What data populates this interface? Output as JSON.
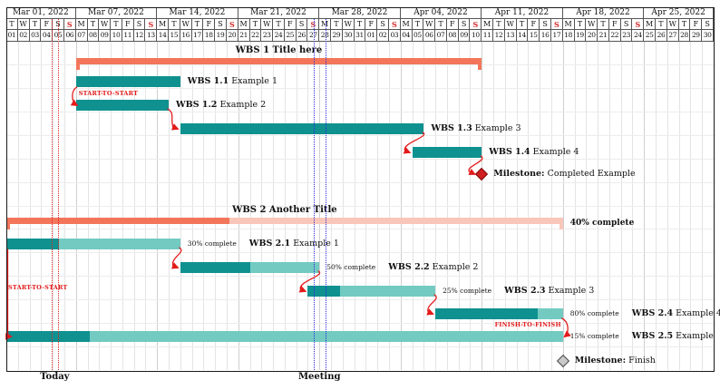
{
  "chart_data": {
    "type": "gantt",
    "calendar": {
      "weeks": [
        {
          "label": "Mar 01, 2022",
          "days": 6
        },
        {
          "label": "Mar 07, 2022",
          "days": 7
        },
        {
          "label": "Mar 14, 2022",
          "days": 7
        },
        {
          "label": "Mar 21, 2022",
          "days": 7
        },
        {
          "label": "Mar 28, 2022",
          "days": 7
        },
        {
          "label": "Apr 04, 2022",
          "days": 7
        },
        {
          "label": "Apr 11, 2022",
          "days": 7
        },
        {
          "label": "Apr 18, 2022",
          "days": 7
        },
        {
          "label": "Apr 25, 2022",
          "days": 6
        }
      ],
      "day_letters": [
        "T",
        "W",
        "T",
        "F",
        "S",
        "S",
        "M",
        "T",
        "W",
        "T",
        "F",
        "S",
        "S",
        "M",
        "T",
        "W",
        "T",
        "F",
        "S",
        "S",
        "M",
        "T",
        "W",
        "T",
        "F",
        "S",
        "S",
        "M",
        "T",
        "W",
        "T",
        "F",
        "S",
        "S",
        "M",
        "T",
        "W",
        "T",
        "F",
        "S",
        "S",
        "M",
        "T",
        "W",
        "T",
        "F",
        "S",
        "S",
        "M",
        "T",
        "W",
        "T",
        "F",
        "S",
        "S",
        "M",
        "T",
        "W",
        "T",
        "F",
        "S"
      ],
      "day_numbers": [
        "01",
        "02",
        "03",
        "04",
        "05",
        "06",
        "07",
        "08",
        "09",
        "10",
        "11",
        "12",
        "13",
        "14",
        "15",
        "16",
        "17",
        "18",
        "19",
        "20",
        "21",
        "22",
        "23",
        "24",
        "25",
        "26",
        "27",
        "28",
        "29",
        "30",
        "31",
        "01",
        "02",
        "03",
        "04",
        "05",
        "06",
        "07",
        "08",
        "09",
        "10",
        "11",
        "12",
        "13",
        "14",
        "15",
        "16",
        "17",
        "18",
        "19",
        "20",
        "21",
        "22",
        "23",
        "24",
        "25",
        "26",
        "27",
        "28",
        "29",
        "30"
      ],
      "sunday_indices": [
        5,
        12,
        19,
        26,
        33,
        40,
        47,
        54
      ]
    },
    "colors": {
      "group_dark": "#F3765B",
      "group_light": "#F9C7B9",
      "task_dark": "#0F9190",
      "task_light": "#73CAC1",
      "milestone_red": "#D01F1F",
      "milestone_gray": "#C9C9C9",
      "link": "#E31B1B",
      "today_line": "#E52222",
      "meeting_line": "#2B2BE0"
    },
    "tasks": [
      {
        "id": "group1",
        "kind": "group",
        "label_bold": "WBS 1 Title here",
        "label_rest": "",
        "start": 6,
        "end": 41,
        "row": 0
      },
      {
        "id": "t11",
        "kind": "bar",
        "label_bold": "WBS 1.1",
        "label_rest": " Example 1",
        "start": 6,
        "end": 15,
        "row": 1
      },
      {
        "id": "t12",
        "kind": "bar",
        "label_bold": "WBS 1.2",
        "label_rest": " Example 2",
        "start": 6,
        "end": 14,
        "row": 2
      },
      {
        "id": "t13",
        "kind": "bar",
        "label_bold": "WBS 1.3",
        "label_rest": " Example 3",
        "start": 15,
        "end": 36,
        "row": 3
      },
      {
        "id": "t14",
        "kind": "bar",
        "label_bold": "WBS 1.4",
        "label_rest": " Example 4",
        "start": 35,
        "end": 41,
        "row": 4
      },
      {
        "id": "m1",
        "kind": "milestone",
        "label_bold": "Milestone:",
        "label_rest": " Completed Example",
        "day": 41,
        "row": 5,
        "color": "red"
      },
      {
        "id": "group2",
        "kind": "group",
        "label_bold": "WBS 2 Another Title",
        "label_rest": "",
        "start": 0,
        "end": 48,
        "row": 6,
        "progress": 0.4,
        "progress_label": "40% complete"
      },
      {
        "id": "t21",
        "kind": "bar",
        "label_bold": "WBS 2.1",
        "label_rest": " Example 1",
        "start": 0,
        "end": 15,
        "row": 7,
        "progress": 0.3,
        "progress_label": "30% complete"
      },
      {
        "id": "t22",
        "kind": "bar",
        "label_bold": "WBS 2.2",
        "label_rest": " Example 2",
        "start": 15,
        "end": 27,
        "row": 8,
        "progress": 0.5,
        "progress_label": "50% complete"
      },
      {
        "id": "t23",
        "kind": "bar",
        "label_bold": "WBS 2.3",
        "label_rest": " Example 3",
        "start": 26,
        "end": 37,
        "row": 9,
        "progress": 0.25,
        "progress_label": "25% complete"
      },
      {
        "id": "t24",
        "kind": "bar",
        "label_bold": "WBS 2.4",
        "label_rest": " Example 4",
        "start": 37,
        "end": 48,
        "row": 10,
        "progress": 0.8,
        "progress_label": "80% complete"
      },
      {
        "id": "t25",
        "kind": "bar",
        "label_bold": "WBS 2.5",
        "label_rest": " Example",
        "start": 0,
        "end": 48,
        "row": 11,
        "progress": 0.15,
        "progress_label": "15% complete"
      },
      {
        "id": "m2",
        "kind": "milestone",
        "label_bold": "Milestone:",
        "label_rest": " Finish",
        "day": 48,
        "row": 12,
        "color": "gray"
      }
    ],
    "links": [
      {
        "from": "t11",
        "to": "t12",
        "type": "start-to-start",
        "label": "START-TO-START"
      },
      {
        "from": "t12",
        "to": "t13",
        "type": "finish-to-start"
      },
      {
        "from": "t13",
        "to": "t14",
        "type": "finish-to-start"
      },
      {
        "from": "t14",
        "to": "m1",
        "type": "finish-to-start"
      },
      {
        "from": "t21",
        "to": "t25",
        "type": "start-to-start",
        "label": "START-TO-START"
      },
      {
        "from": "t21",
        "to": "t22",
        "type": "finish-to-start"
      },
      {
        "from": "t22",
        "to": "t23",
        "type": "finish-to-start"
      },
      {
        "from": "t23",
        "to": "t24",
        "type": "finish-to-start"
      },
      {
        "from": "t24",
        "to": "t25",
        "type": "finish-to-finish",
        "label": "FINISH-TO-FINISH"
      }
    ],
    "vrules": [
      {
        "label": "Today",
        "color": "#E52222",
        "days": [
          3.93,
          4.42
        ]
      },
      {
        "label": "Meeting",
        "color": "#2B2BE0",
        "days": [
          26.5,
          27.5
        ]
      }
    ]
  }
}
